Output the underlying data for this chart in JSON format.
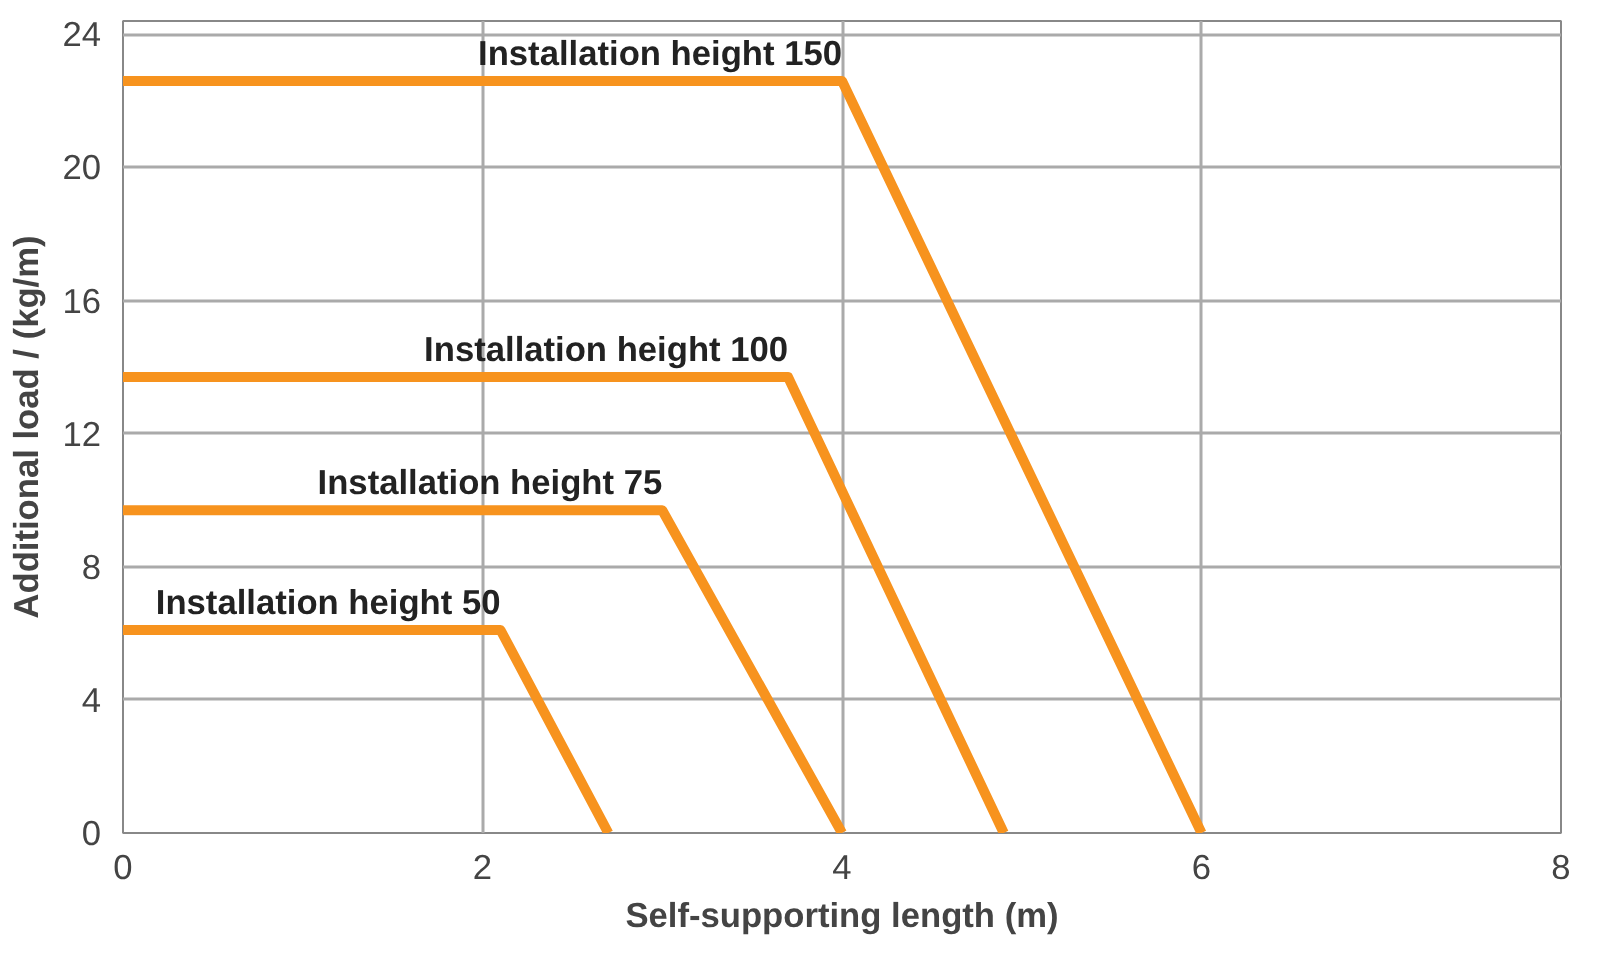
{
  "chart_data": {
    "type": "line",
    "xlabel": "Self-supporting length (m)",
    "ylabel": "Additional load / (kg/m)",
    "series": [
      {
        "name": "Installation height 150",
        "color": "#f7931e",
        "x": [
          0,
          4.0,
          6.0
        ],
        "values": [
          22.6,
          22.6,
          0
        ]
      },
      {
        "name": "Installation height 100",
        "color": "#f7931e",
        "x": [
          0,
          3.7,
          4.9
        ],
        "values": [
          13.7,
          13.7,
          0
        ]
      },
      {
        "name": "Installation height 75",
        "color": "#f7931e",
        "x": [
          0,
          3.0,
          4.0
        ],
        "values": [
          9.7,
          9.7,
          0
        ]
      },
      {
        "name": "Installation height 50",
        "color": "#f7931e",
        "x": [
          0,
          2.1,
          2.7
        ],
        "values": [
          6.1,
          6.1,
          0
        ]
      }
    ],
    "xlim": [
      0,
      8
    ],
    "ylim": [
      0,
      24.4
    ],
    "xticks": [
      0,
      2,
      4,
      6,
      8
    ],
    "yticks": [
      0,
      4,
      8,
      12,
      16,
      20,
      24
    ],
    "grid": true,
    "marker": "none",
    "line_style": "solid"
  }
}
